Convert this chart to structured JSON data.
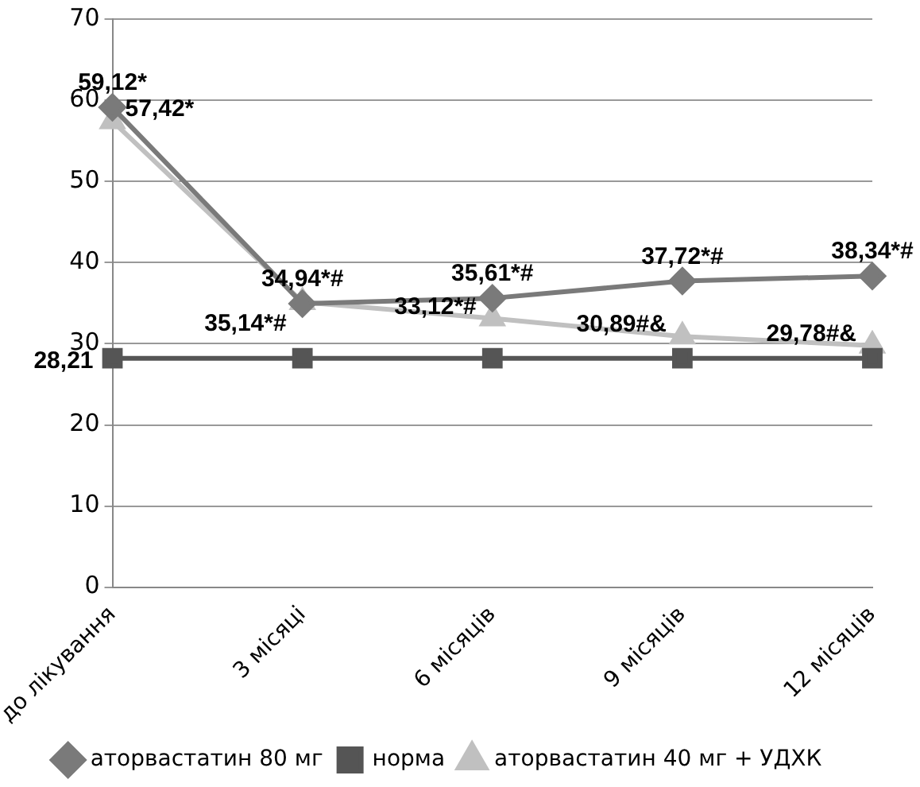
{
  "chart_data": {
    "type": "line",
    "categories": [
      "до лікування",
      "3 місяці",
      "6 місяців",
      "9 місяців",
      "12 місяців"
    ],
    "series": [
      {
        "name": "аторвастатин 80 мг",
        "color": "#7a7a7a",
        "marker": "diamond",
        "values": [
          59.12,
          34.94,
          35.61,
          37.72,
          38.34
        ],
        "value_labels": [
          "59,12*",
          "34,94*#",
          "35,61*#",
          "37,72*#",
          "38,34*#"
        ]
      },
      {
        "name": "норма",
        "color": "#555555",
        "marker": "square",
        "values": [
          28.21,
          28.21,
          28.21,
          28.21,
          28.21
        ],
        "value_labels": [
          "28,21",
          null,
          null,
          null,
          null
        ]
      },
      {
        "name": "аторвастатин 40 мг + УДХК",
        "color": "#c0c0c0",
        "marker": "triangle",
        "values": [
          57.42,
          35.14,
          33.12,
          30.89,
          29.78
        ],
        "value_labels": [
          "57,42*",
          "35,14*#",
          "33,12*#",
          "30,89#&",
          "29,78#&"
        ]
      }
    ],
    "ylim": [
      0,
      70
    ],
    "yticks": [
      0,
      10,
      20,
      30,
      40,
      50,
      60,
      70
    ],
    "grid": "y",
    "legend": "bottom"
  }
}
